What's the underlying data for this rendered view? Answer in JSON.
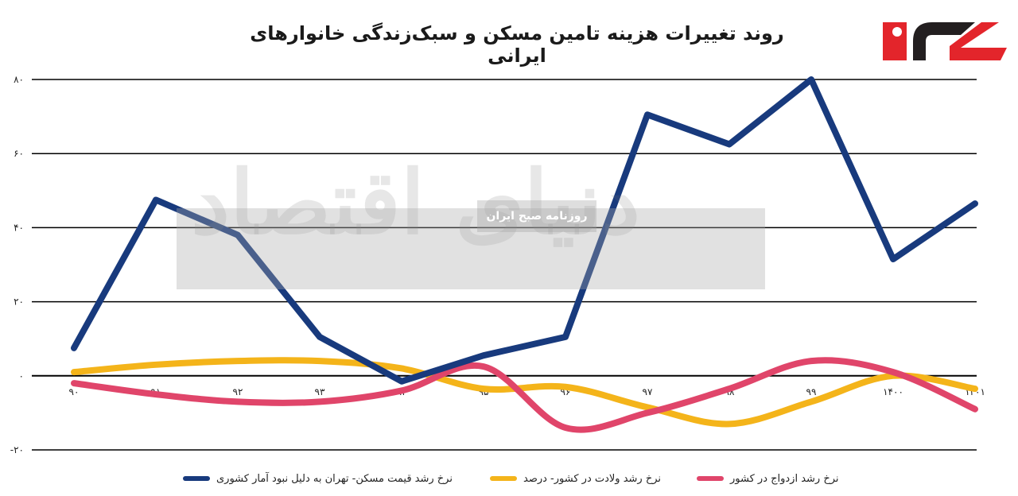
{
  "title": "روند تغییرات هزینه تامین مسکن و سبک‌زندگی خانوارهای ایرانی",
  "watermark": {
    "brand": "دنیای اقتصاد",
    "subtitle": "روزنامه صبح ایران"
  },
  "colors": {
    "housing": "#183a7d",
    "birth": "#f4b41a",
    "marriage": "#e0456a",
    "logo_red": "#e3252b",
    "logo_dark": "#231f20"
  },
  "chart_data": {
    "type": "line",
    "categories": [
      "۹۰",
      "۹۱",
      "۹۲",
      "۹۳",
      "۹۴",
      "۹۵",
      "۹۶",
      "۹۷",
      "۹۸",
      "۹۹",
      "۱۴۰۰",
      "۱۴۰۱"
    ],
    "yticks": [
      "-۲۰",
      "۰",
      "۲۰",
      "۴۰",
      "۶۰",
      "۸۰"
    ],
    "ylim": [
      -20,
      80
    ],
    "grid": true,
    "legend_position": "bottom",
    "series": [
      {
        "name": "نرخ رشد قیمت مسکن- تهران به دلیل نبود آمار کشوری",
        "key": "housing",
        "values": [
          7.5,
          47.5,
          38,
          10.5,
          -1.5,
          5.5,
          10.5,
          70.5,
          62.5,
          80,
          31.5,
          46.5
        ]
      },
      {
        "name": "نرخ رشد ولادت در کشور- درصد",
        "key": "birth",
        "values": [
          1,
          3,
          4,
          4,
          2,
          -3.5,
          -3,
          -8.5,
          -13,
          -7,
          0,
          -3.5
        ]
      },
      {
        "name": "نرخ رشد ازدواج در کشور",
        "key": "marriage",
        "values": [
          -2,
          -5,
          -7,
          -7,
          -4,
          2.5,
          -14,
          -10,
          -3.5,
          4,
          1,
          -9
        ]
      }
    ]
  }
}
